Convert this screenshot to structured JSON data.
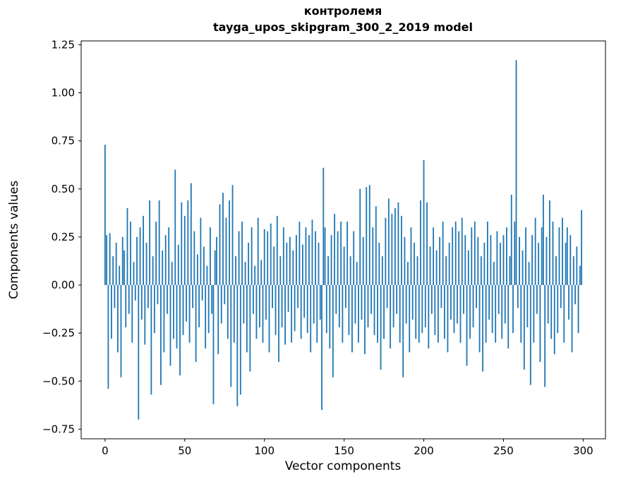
{
  "title_line1": "контролемя",
  "title_line2": "tayga_upos_skipgram_300_2_2019 model",
  "chart_data": {
    "type": "bar",
    "title": "контролемя\ntayga_upos_skipgram_300_2_2019 model",
    "xlabel": "Vector components",
    "ylabel": "Components values",
    "xlim": [
      -15,
      314
    ],
    "ylim": [
      -0.8,
      1.27
    ],
    "xticks": [
      0,
      50,
      100,
      150,
      200,
      250,
      300
    ],
    "yticks": [
      -0.75,
      -0.5,
      -0.25,
      0.0,
      0.25,
      0.5,
      0.75,
      1.0,
      1.25
    ],
    "grid": false,
    "legend": "none",
    "bar_color": "#1f77b4",
    "bar_width": 0.8,
    "x_is_index": true,
    "values": [
      0.73,
      0.26,
      -0.54,
      0.27,
      -0.28,
      0.15,
      -0.12,
      0.22,
      -0.35,
      0.1,
      -0.48,
      0.25,
      0.18,
      -0.22,
      0.4,
      -0.15,
      0.33,
      -0.3,
      0.12,
      -0.08,
      0.25,
      -0.7,
      0.3,
      -0.18,
      0.36,
      -0.31,
      0.22,
      -0.12,
      0.44,
      -0.57,
      0.15,
      -0.25,
      0.33,
      -0.1,
      0.44,
      -0.52,
      0.18,
      -0.35,
      0.26,
      -0.15,
      0.3,
      -0.42,
      0.12,
      -0.28,
      0.6,
      -0.33,
      0.21,
      -0.47,
      0.43,
      -0.26,
      0.36,
      -0.19,
      0.44,
      -0.3,
      0.53,
      -0.12,
      0.28,
      -0.4,
      0.16,
      -0.22,
      0.35,
      -0.08,
      0.2,
      -0.33,
      0.1,
      -0.25,
      0.3,
      -0.15,
      -0.62,
      0.18,
      0.25,
      -0.36,
      0.42,
      -0.2,
      0.48,
      -0.1,
      0.35,
      -0.28,
      0.44,
      -0.53,
      0.52,
      -0.3,
      0.15,
      -0.63,
      0.28,
      -0.57,
      0.33,
      -0.2,
      0.12,
      -0.35,
      0.22,
      -0.45,
      0.3,
      -0.15,
      0.1,
      -0.28,
      0.35,
      -0.22,
      0.13,
      -0.3,
      0.29,
      -0.18,
      0.28,
      -0.35,
      0.32,
      -0.12,
      0.2,
      -0.26,
      0.36,
      -0.4,
      0.15,
      -0.22,
      0.3,
      -0.31,
      0.22,
      -0.14,
      0.25,
      -0.3,
      0.18,
      -0.24,
      0.26,
      -0.12,
      0.33,
      -0.28,
      0.21,
      -0.17,
      0.3,
      -0.25,
      0.26,
      -0.35,
      0.34,
      -0.2,
      0.28,
      -0.3,
      0.22,
      -0.18,
      -0.65,
      0.61,
      0.3,
      -0.25,
      0.15,
      -0.33,
      0.26,
      -0.48,
      0.37,
      -0.15,
      0.28,
      -0.22,
      0.33,
      -0.3,
      0.2,
      -0.12,
      0.33,
      -0.26,
      0.15,
      -0.35,
      0.28,
      -0.2,
      0.12,
      -0.3,
      0.5,
      -0.18,
      0.25,
      -0.36,
      0.51,
      -0.22,
      0.52,
      -0.15,
      0.3,
      -0.26,
      0.41,
      -0.3,
      0.22,
      -0.44,
      0.15,
      -0.28,
      0.35,
      -0.12,
      0.45,
      -0.33,
      0.37,
      -0.22,
      0.4,
      -0.15,
      0.43,
      -0.3,
      0.36,
      -0.48,
      0.25,
      -0.2,
      0.12,
      -0.35,
      0.3,
      -0.18,
      0.22,
      -0.28,
      0.15,
      -0.3,
      0.44,
      -0.25,
      0.65,
      -0.22,
      0.43,
      -0.33,
      0.2,
      -0.15,
      0.3,
      -0.26,
      0.18,
      -0.3,
      0.25,
      -0.12,
      0.33,
      -0.28,
      0.15,
      -0.35,
      0.22,
      -0.18,
      0.3,
      -0.25,
      0.33,
      -0.2,
      0.28,
      -0.3,
      0.35,
      -0.15,
      0.26,
      -0.42,
      0.18,
      -0.28,
      0.3,
      -0.22,
      0.33,
      -0.12,
      0.25,
      -0.35,
      0.15,
      -0.45,
      0.22,
      -0.3,
      0.33,
      -0.18,
      0.26,
      -0.25,
      0.12,
      -0.3,
      0.28,
      -0.15,
      0.22,
      -0.28,
      0.26,
      -0.2,
      0.3,
      -0.33,
      0.15,
      0.47,
      -0.25,
      0.33,
      1.17,
      -0.12,
      0.25,
      -0.3,
      0.18,
      -0.44,
      0.3,
      -0.22,
      0.12,
      -0.52,
      0.26,
      -0.3,
      0.35,
      -0.15,
      0.22,
      -0.4,
      0.3,
      0.47,
      -0.53,
      0.25,
      -0.2,
      0.44,
      -0.28,
      0.33,
      -0.36,
      0.15,
      -0.25,
      0.3,
      -0.12,
      0.35,
      -0.3,
      0.22,
      0.3,
      -0.18,
      0.26,
      -0.35,
      0.15,
      -0.1,
      0.2,
      -0.25,
      0.1,
      0.39
    ]
  }
}
